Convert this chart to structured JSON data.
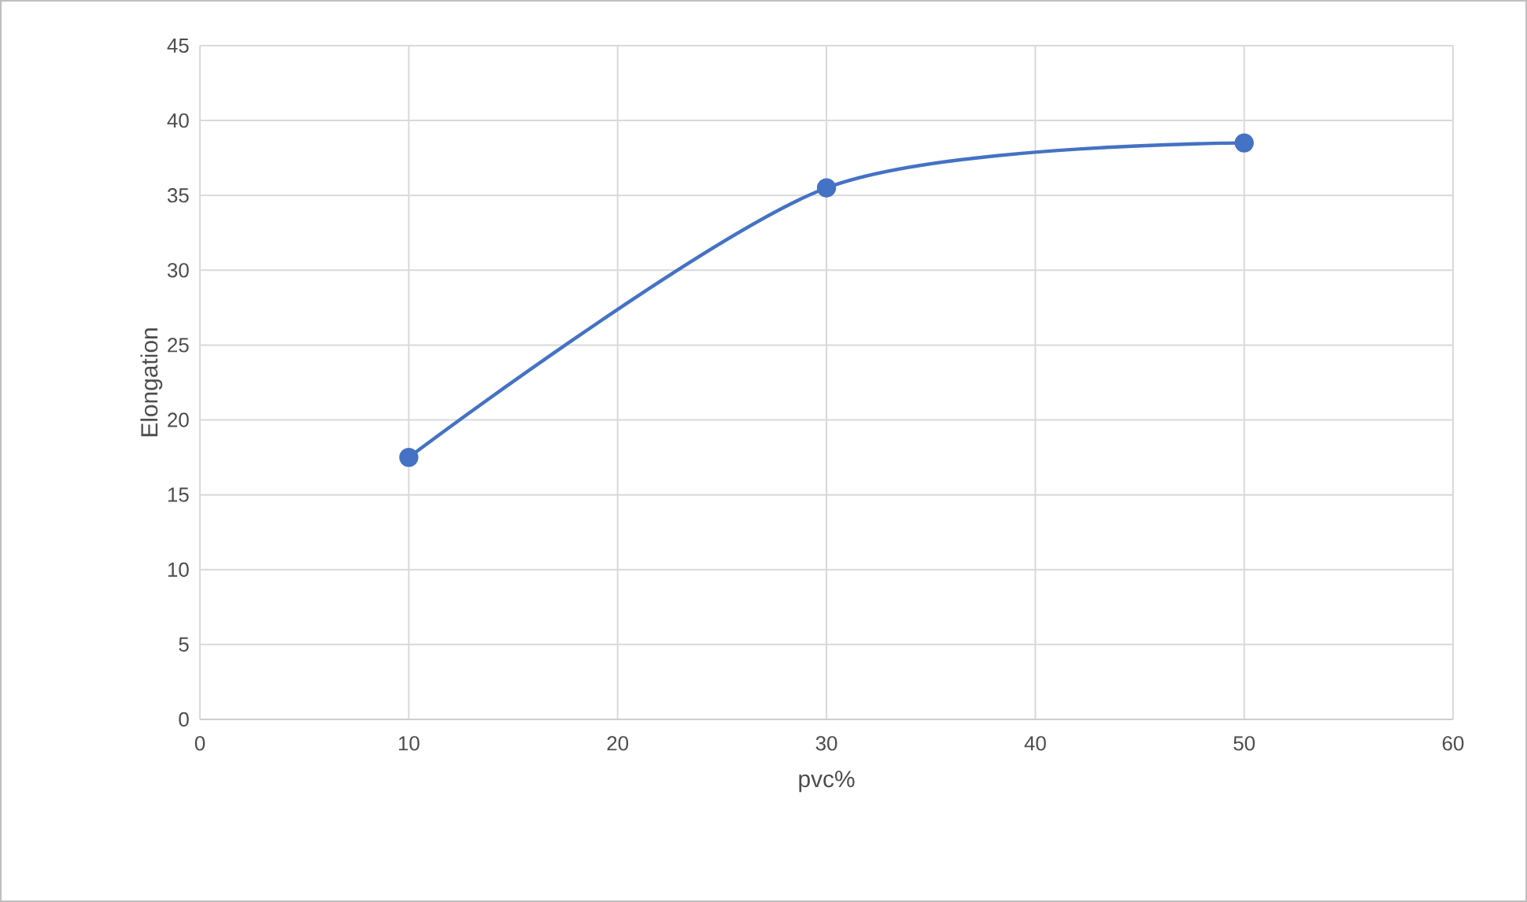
{
  "chart_data": {
    "type": "line",
    "xlabel": "pvc%",
    "ylabel": "Elongation",
    "x": [
      10,
      30,
      50
    ],
    "values": [
      17.5,
      35.5,
      38.5
    ],
    "color": "#4472c4",
    "marker": "circle",
    "xlim": [
      0,
      60
    ],
    "ylim": [
      0,
      45
    ],
    "xticks": [
      0,
      10,
      20,
      30,
      40,
      50,
      60
    ],
    "yticks": [
      0,
      5,
      10,
      15,
      20,
      25,
      30,
      35,
      40,
      45
    ],
    "grid": true
  }
}
